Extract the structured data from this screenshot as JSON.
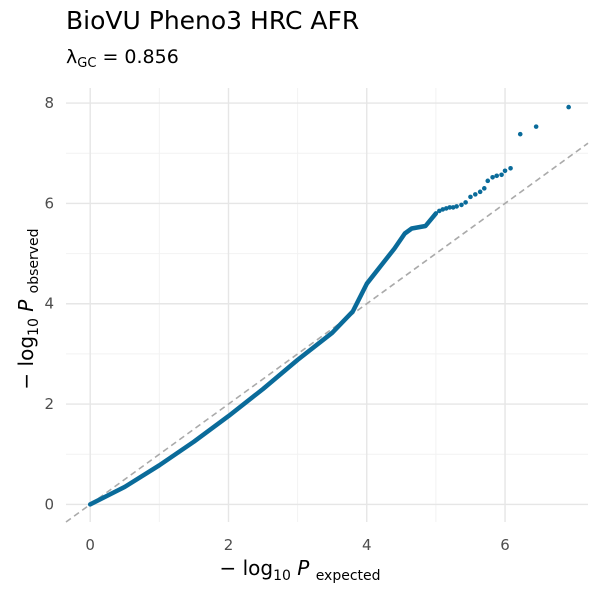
{
  "chart_data": {
    "type": "scatter",
    "title": "BioVU Pheno3 HRC AFR",
    "subtitle": {
      "lambda_symbol": "λ",
      "lambda_subscript": "GC",
      "lambda_value": "= 0.856"
    },
    "xlabel": {
      "prefix": "− log",
      "base": "10",
      "symbol": "P",
      "subscript": "expected"
    },
    "ylabel": {
      "prefix": "− log",
      "base": "10",
      "symbol": "P",
      "subscript": "observed"
    },
    "xlim": [
      -0.35,
      7.2
    ],
    "ylim": [
      -0.35,
      8.3
    ],
    "x_ticks": [
      0,
      2,
      4,
      6
    ],
    "y_ticks": [
      0,
      2,
      4,
      6,
      8
    ],
    "x_tick_labels": [
      "0",
      "2",
      "4",
      "6"
    ],
    "y_tick_labels": [
      "0",
      "2",
      "4",
      "6",
      "8"
    ],
    "grid": true,
    "reference_line": "y = x",
    "point_color": "#0a6b9a",
    "reference_line_color": "#aaaaaa",
    "curve": [
      [
        0.0,
        0.0
      ],
      [
        0.5,
        0.35
      ],
      [
        1.0,
        0.78
      ],
      [
        1.5,
        1.25
      ],
      [
        2.0,
        1.76
      ],
      [
        2.5,
        2.3
      ],
      [
        3.0,
        2.88
      ],
      [
        3.5,
        3.42
      ],
      [
        3.8,
        3.85
      ],
      [
        4.0,
        4.4
      ],
      [
        4.2,
        4.75
      ],
      [
        4.4,
        5.1
      ],
      [
        4.55,
        5.4
      ],
      [
        4.65,
        5.5
      ],
      [
        4.85,
        5.55
      ],
      [
        5.0,
        5.8
      ]
    ],
    "points": [
      [
        5.05,
        5.85
      ],
      [
        5.1,
        5.88
      ],
      [
        5.15,
        5.9
      ],
      [
        5.2,
        5.92
      ],
      [
        5.25,
        5.92
      ],
      [
        5.3,
        5.94
      ],
      [
        5.37,
        5.97
      ],
      [
        5.43,
        6.02
      ],
      [
        5.5,
        6.13
      ],
      [
        5.57,
        6.18
      ],
      [
        5.64,
        6.23
      ],
      [
        5.7,
        6.3
      ],
      [
        5.75,
        6.45
      ],
      [
        5.82,
        6.52
      ],
      [
        5.88,
        6.55
      ],
      [
        5.95,
        6.57
      ],
      [
        6.0,
        6.65
      ],
      [
        6.08,
        6.7
      ],
      [
        6.22,
        7.38
      ],
      [
        6.45,
        7.53
      ],
      [
        6.92,
        7.92
      ]
    ]
  }
}
